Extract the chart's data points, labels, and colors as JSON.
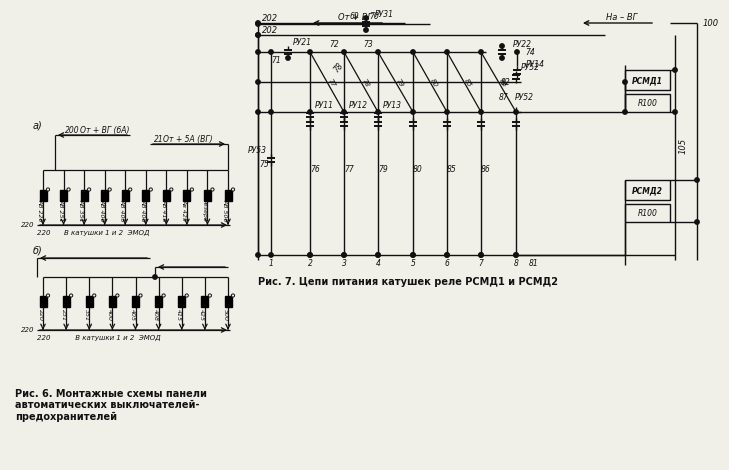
{
  "bg_color": "#f0efe8",
  "lc": "#111111",
  "fig_a_label": "а)",
  "fig_b_label": "б)",
  "fig_a_breakers": [
    "АВ 220",
    "АВ 251",
    "АВ 351",
    "АВ 400",
    "АВ 405",
    "АВ 408",
    "АВ 415",
    "Ав 425",
    "Резерб",
    "АВ 500"
  ],
  "fig_b_labels": [
    "220",
    "231",
    "351",
    "400",
    "405",
    "408",
    "415",
    "425",
    "500"
  ],
  "fig_a_top1_num": "200",
  "fig_a_top1_txt": "От + ВГ (бА)",
  "fig_a_top2_num": "21",
  "fig_a_top2_txt": "От + 5А (ВГ)",
  "fig_a_bottom_txt": "220      В катушки 1 и 2  ЭМОД",
  "fig_b_bottom_txt": "220           В катушки 1 и 2  ЭМОД",
  "fig6_caption": "Рис. 6. Монтажные схемы панели\nавтоматических выключателей-\nпредохранителей",
  "fig7_caption": "Рис. 7. Цепи питания катушек реле РСМД1 и РСМД2",
  "w202": "202",
  "w202b": "202",
  "w_oт_vg": "От + ВГ",
  "w_na_vg": "На – ВГ",
  "w100": "100",
  "w105": "105",
  "rsmd1": "РСМД1",
  "rsmd2": "РСМД2",
  "r100": "R100"
}
